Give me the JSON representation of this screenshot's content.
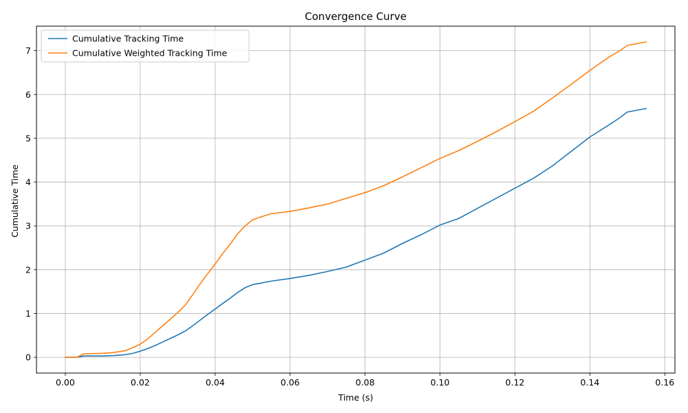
{
  "chart_data": {
    "type": "line",
    "title": "Convergence Curve",
    "xlabel": "Time (s)",
    "ylabel": "Cumulative Time",
    "xlim": [
      -0.0077,
      0.1627
    ],
    "ylim": [
      -0.36,
      7.56
    ],
    "xticks": [
      0.0,
      0.02,
      0.04,
      0.06,
      0.08,
      0.1,
      0.12,
      0.14,
      0.16
    ],
    "xtick_labels": [
      "0.00",
      "0.02",
      "0.04",
      "0.06",
      "0.08",
      "0.10",
      "0.12",
      "0.14",
      "0.16"
    ],
    "yticks": [
      0,
      1,
      2,
      3,
      4,
      5,
      6,
      7
    ],
    "ytick_labels": [
      "0",
      "1",
      "2",
      "3",
      "4",
      "5",
      "6",
      "7"
    ],
    "grid": true,
    "legend_position": "upper-left",
    "series": [
      {
        "name": "Cumulative Tracking Time",
        "color": "#1f77b4",
        "points": [
          [
            0.0,
            0.0
          ],
          [
            0.003,
            0.0
          ],
          [
            0.005,
            0.03
          ],
          [
            0.01,
            0.03
          ],
          [
            0.013,
            0.04
          ],
          [
            0.016,
            0.06
          ],
          [
            0.018,
            0.09
          ],
          [
            0.02,
            0.14
          ],
          [
            0.022,
            0.2
          ],
          [
            0.024,
            0.27
          ],
          [
            0.026,
            0.35
          ],
          [
            0.028,
            0.43
          ],
          [
            0.03,
            0.51
          ],
          [
            0.032,
            0.6
          ],
          [
            0.034,
            0.72
          ],
          [
            0.036,
            0.85
          ],
          [
            0.038,
            0.98
          ],
          [
            0.04,
            1.1
          ],
          [
            0.042,
            1.23
          ],
          [
            0.044,
            1.35
          ],
          [
            0.046,
            1.48
          ],
          [
            0.048,
            1.59
          ],
          [
            0.05,
            1.66
          ],
          [
            0.052,
            1.69
          ],
          [
            0.055,
            1.74
          ],
          [
            0.06,
            1.8
          ],
          [
            0.065,
            1.87
          ],
          [
            0.07,
            1.96
          ],
          [
            0.075,
            2.06
          ],
          [
            0.08,
            2.22
          ],
          [
            0.085,
            2.38
          ],
          [
            0.09,
            2.6
          ],
          [
            0.095,
            2.8
          ],
          [
            0.1,
            3.02
          ],
          [
            0.105,
            3.17
          ],
          [
            0.11,
            3.4
          ],
          [
            0.115,
            3.63
          ],
          [
            0.12,
            3.86
          ],
          [
            0.125,
            4.09
          ],
          [
            0.13,
            4.37
          ],
          [
            0.135,
            4.7
          ],
          [
            0.14,
            5.03
          ],
          [
            0.145,
            5.3
          ],
          [
            0.148,
            5.47
          ],
          [
            0.15,
            5.6
          ],
          [
            0.155,
            5.68
          ]
        ]
      },
      {
        "name": "Cumulative Weighted Tracking Time",
        "color": "#ff7f0e",
        "points": [
          [
            0.0,
            0.0
          ],
          [
            0.003,
            0.0
          ],
          [
            0.005,
            0.08
          ],
          [
            0.01,
            0.09
          ],
          [
            0.013,
            0.11
          ],
          [
            0.016,
            0.15
          ],
          [
            0.018,
            0.22
          ],
          [
            0.02,
            0.3
          ],
          [
            0.022,
            0.42
          ],
          [
            0.024,
            0.57
          ],
          [
            0.026,
            0.72
          ],
          [
            0.028,
            0.87
          ],
          [
            0.03,
            1.02
          ],
          [
            0.032,
            1.19
          ],
          [
            0.034,
            1.43
          ],
          [
            0.036,
            1.68
          ],
          [
            0.038,
            1.91
          ],
          [
            0.04,
            2.13
          ],
          [
            0.042,
            2.37
          ],
          [
            0.044,
            2.58
          ],
          [
            0.046,
            2.82
          ],
          [
            0.048,
            3.0
          ],
          [
            0.05,
            3.14
          ],
          [
            0.052,
            3.2
          ],
          [
            0.055,
            3.28
          ],
          [
            0.06,
            3.33
          ],
          [
            0.065,
            3.41
          ],
          [
            0.07,
            3.5
          ],
          [
            0.075,
            3.63
          ],
          [
            0.08,
            3.76
          ],
          [
            0.085,
            3.92
          ],
          [
            0.09,
            4.12
          ],
          [
            0.095,
            4.33
          ],
          [
            0.1,
            4.54
          ],
          [
            0.105,
            4.72
          ],
          [
            0.11,
            4.93
          ],
          [
            0.115,
            5.15
          ],
          [
            0.12,
            5.38
          ],
          [
            0.125,
            5.62
          ],
          [
            0.13,
            5.92
          ],
          [
            0.135,
            6.23
          ],
          [
            0.14,
            6.55
          ],
          [
            0.145,
            6.85
          ],
          [
            0.148,
            7.0
          ],
          [
            0.15,
            7.12
          ],
          [
            0.155,
            7.2
          ]
        ]
      }
    ]
  }
}
